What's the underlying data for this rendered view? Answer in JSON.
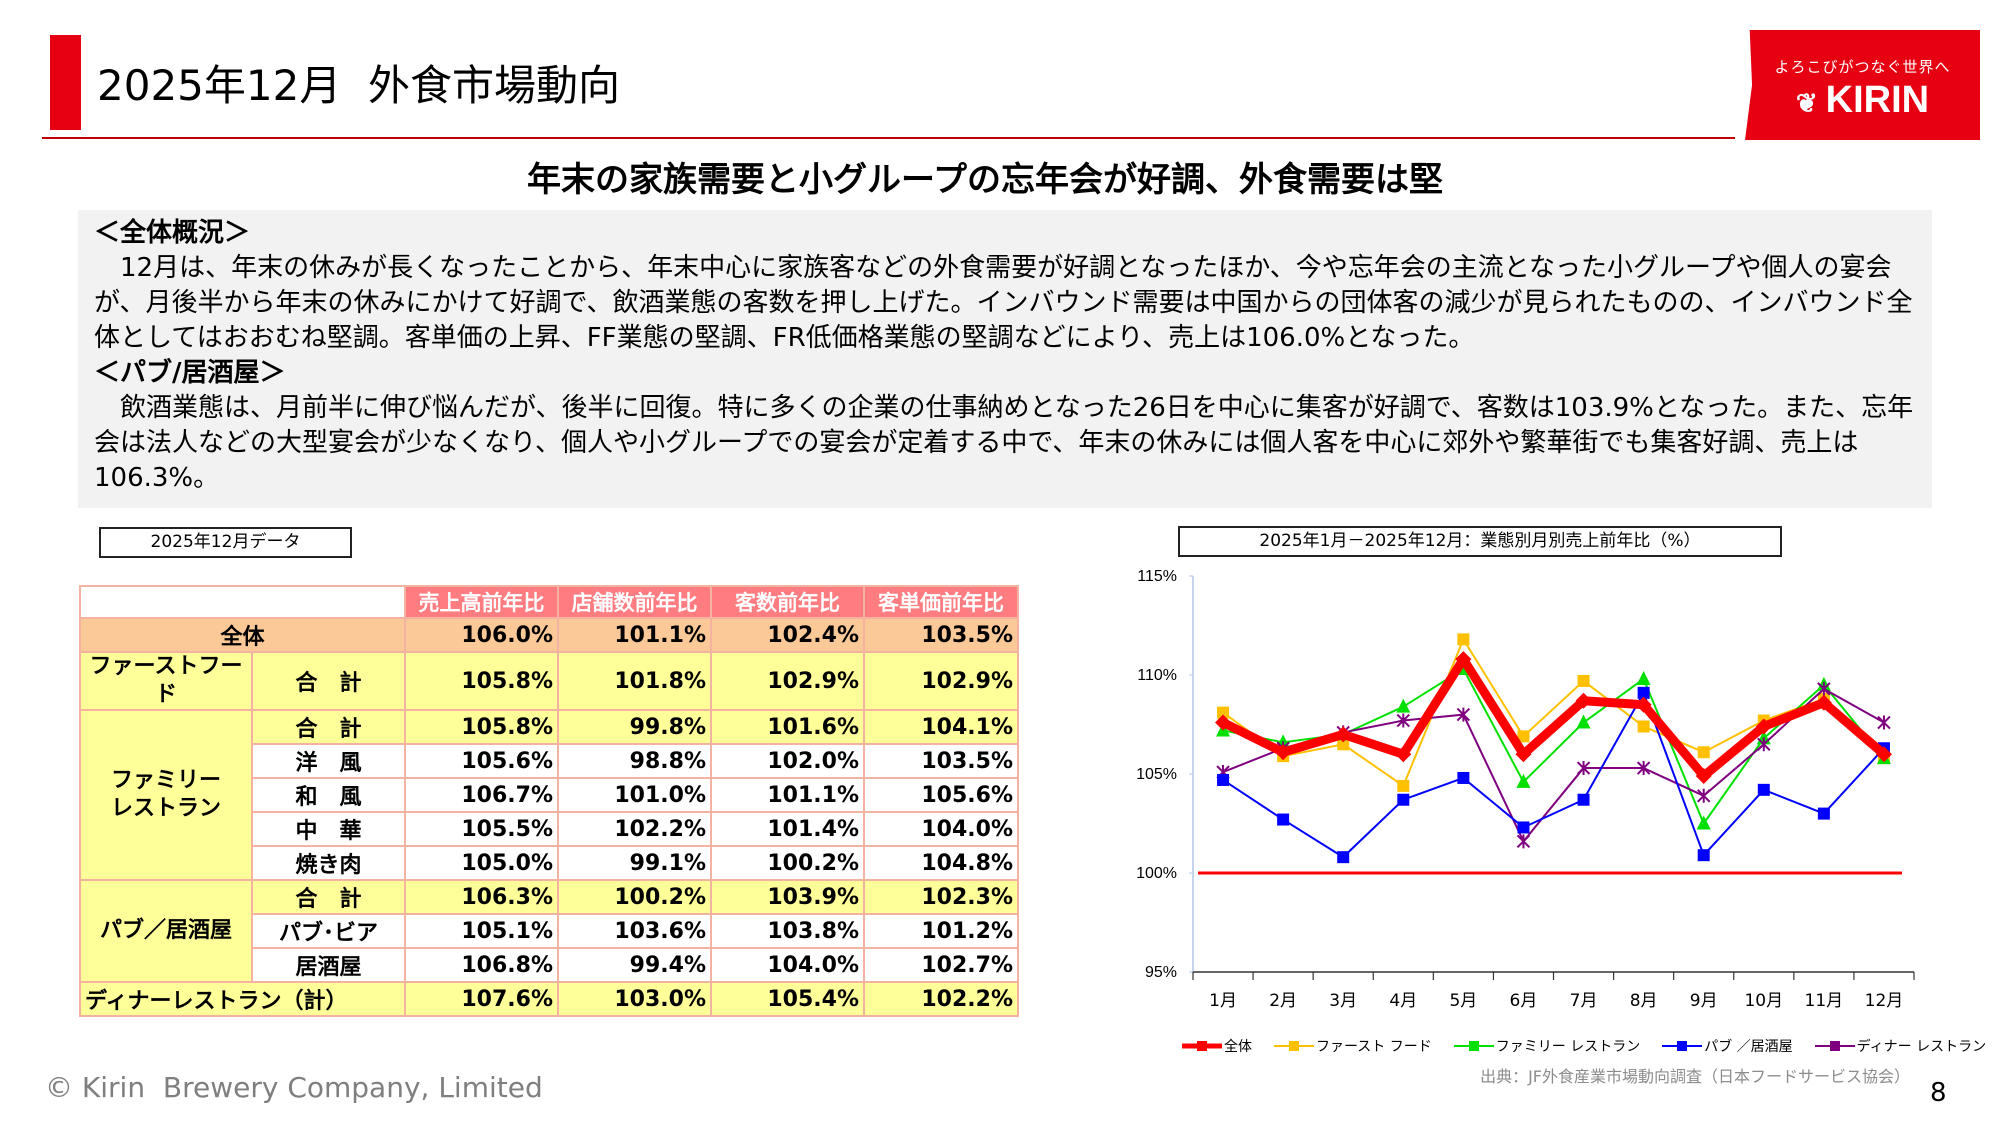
{
  "header": {
    "title": "2025年12月  外食市場動向",
    "logo": {
      "tagline": "よろこびがつなぐ世界へ",
      "brand": "KIRIN"
    },
    "accent_color": "#e60012"
  },
  "headline": "年末の家族需要と小グループの忘年会が好調、外食需要は堅",
  "summary": {
    "overall_heading": "＜全体概況＞",
    "overall_text": "12月は、年末の休みが長くなったことから、年末中心に家族客などの外食需要が好調となったほか、今や忘年会の主流となった小グループや個人の宴会が、月後半から年末の休みにかけて好調で、飲酒業態の客数を押し上げた。インバウンド需要は中国からの団体客の減少が見られたものの、インバウンド全体としてはおおむね堅調。客単価の上昇、FF業態の堅調、FR低価格業態の堅調などにより、売上は106.0%となった。",
    "pub_heading": "＜パブ/居酒屋＞",
    "pub_text": "飲酒業態は、月前半に伸び悩んだが、後半に回復。特に多くの企業の仕事納めとなった26日を中心に集客が好調で、客数は103.9%となった。また、忘年会は法人などの大型宴会が少なくなり、個人や小グループでの宴会が定着する中で、年末の休みには個人客を中心に郊外や繁華街でも集客好調、売上は106.3%。"
  },
  "table": {
    "label": "2025年12月データ",
    "columns": [
      "売上高前年比",
      "店舗数前年比",
      "客数前年比",
      "客単価前年比"
    ],
    "rows": [
      {
        "category": "全体",
        "sub": "",
        "values": [
          "106.0%",
          "101.1%",
          "102.4%",
          "103.5%"
        ]
      },
      {
        "category": "ファーストフード",
        "sub": "合　計",
        "values": [
          "105.8%",
          "101.8%",
          "102.9%",
          "102.9%"
        ]
      },
      {
        "category": "ファミリー\nレストラン",
        "sub": "合　計",
        "values": [
          "105.8%",
          "99.8%",
          "101.6%",
          "104.1%"
        ]
      },
      {
        "category": "",
        "sub": "洋　風",
        "values": [
          "105.6%",
          "98.8%",
          "102.0%",
          "103.5%"
        ]
      },
      {
        "category": "",
        "sub": "和　風",
        "values": [
          "106.7%",
          "101.0%",
          "101.1%",
          "105.6%"
        ]
      },
      {
        "category": "",
        "sub": "中　華",
        "values": [
          "105.5%",
          "102.2%",
          "101.4%",
          "104.0%"
        ]
      },
      {
        "category": "",
        "sub": "焼き肉",
        "values": [
          "105.0%",
          "99.1%",
          "100.2%",
          "104.8%"
        ]
      },
      {
        "category": "パブ／居酒屋",
        "sub": "合　計",
        "values": [
          "106.3%",
          "100.2%",
          "103.9%",
          "102.3%"
        ]
      },
      {
        "category": "",
        "sub": "パブ･ビア",
        "values": [
          "105.1%",
          "103.6%",
          "103.8%",
          "101.2%"
        ]
      },
      {
        "category": "",
        "sub": "居酒屋",
        "values": [
          "106.8%",
          "99.4%",
          "104.0%",
          "102.7%"
        ]
      },
      {
        "category": "ディナーレストラン（計）",
        "sub": "",
        "values": [
          "107.6%",
          "103.0%",
          "105.4%",
          "102.2%"
        ]
      }
    ]
  },
  "chart_data": {
    "type": "line",
    "title": "2025年1月－2025年12月：業態別月別売上前年比（%）",
    "categories": [
      "1月",
      "2月",
      "3月",
      "4月",
      "5月",
      "6月",
      "7月",
      "8月",
      "9月",
      "10月",
      "11月",
      "12月"
    ],
    "ylim": [
      95,
      115
    ],
    "yticks": [
      "95%",
      "100%",
      "105%",
      "110%",
      "115%"
    ],
    "ytick_values": [
      95,
      100,
      105,
      110,
      115
    ],
    "reference_line": 100,
    "reference_color": "#ff0000",
    "grid": false,
    "legend_position": "bottom",
    "series": [
      {
        "name": "全体",
        "color": "#ff0000",
        "marker": "diamond",
        "values": [
          107.6,
          106.1,
          107.0,
          106.0,
          110.8,
          106.0,
          108.7,
          108.5,
          104.9,
          107.4,
          108.6,
          106.0
        ]
      },
      {
        "name": "ファースト フード",
        "color": "#ffc000",
        "marker": "square",
        "values": [
          108.1,
          105.9,
          106.5,
          104.4,
          111.8,
          106.9,
          109.7,
          107.4,
          106.1,
          107.7,
          108.8,
          105.8
        ]
      },
      {
        "name": "ファミリー レストラン",
        "color": "#00e000",
        "marker": "triangle",
        "values": [
          107.2,
          106.6,
          107.0,
          108.4,
          110.3,
          104.6,
          107.6,
          109.8,
          102.5,
          106.8,
          109.5,
          105.8
        ]
      },
      {
        "name": "パブ ／居酒屋",
        "color": "#0000ff",
        "marker": "square",
        "values": [
          104.7,
          102.7,
          100.8,
          103.7,
          104.8,
          102.3,
          103.7,
          109.1,
          100.9,
          104.2,
          103.0,
          106.3
        ]
      },
      {
        "name": "ディナー レストラン",
        "color": "#7f007f",
        "marker": "star",
        "values": [
          105.1,
          106.3,
          107.1,
          107.7,
          108.0,
          101.6,
          105.3,
          105.3,
          103.9,
          106.5,
          109.3,
          107.6
        ]
      }
    ],
    "source": "出典：JF外食産業市場動向調査（日本フードサービス協会）"
  },
  "footer": {
    "copyright": "© Kirin  Brewery Company, Limited",
    "page_number": "8"
  }
}
